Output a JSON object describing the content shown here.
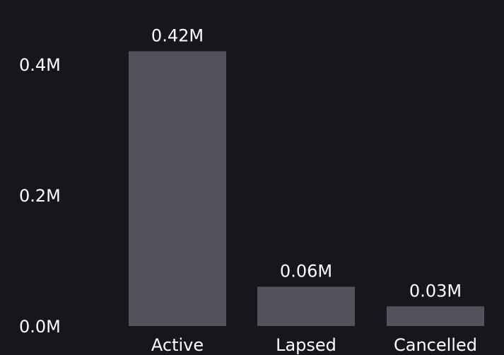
{
  "chart_data": {
    "type": "bar",
    "title": "",
    "xlabel": "",
    "ylabel": "",
    "categories": [
      "Active",
      "Lapsed",
      "Cancelled"
    ],
    "values": [
      420000,
      60000,
      30000
    ],
    "data_labels": [
      "0.42M",
      "0.06M",
      "0.03M"
    ],
    "yticks": [
      {
        "value": 0,
        "label": "0.0M"
      },
      {
        "value": 200000,
        "label": "0.2M"
      },
      {
        "value": 400000,
        "label": "0.4M"
      }
    ],
    "ylim": [
      0,
      460000
    ],
    "grid": false,
    "legend": "none"
  },
  "colors": {
    "background": "#17161d",
    "bar": "#53525a",
    "text": "#ffffff"
  }
}
